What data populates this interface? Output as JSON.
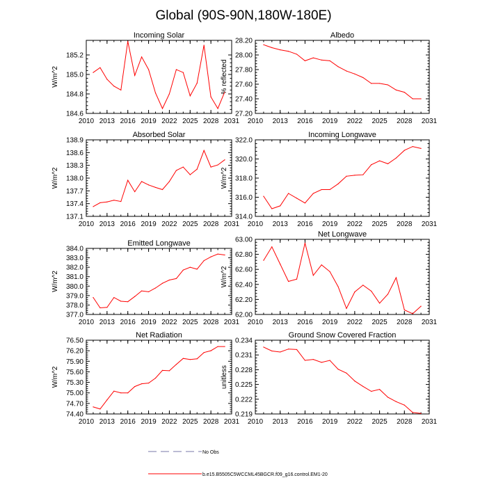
{
  "title": "Global (90S-90N,180W-180E)",
  "legend": {
    "entries": [
      {
        "label": "No Obs",
        "style": "dashed",
        "color": "#7777aa"
      },
      {
        "label": "b.e15.B5505C5WCCML45BGCR.f09_g16.control.EM1-20",
        "style": "solid",
        "color": "#ff0000"
      }
    ]
  },
  "colors": {
    "series": "#ff0000",
    "axis": "#000000"
  },
  "chart_data": [
    {
      "type": "line",
      "title": "Incoming Solar",
      "ylabel": "W/m^2",
      "xlim": [
        2010,
        2031
      ],
      "xticks": [
        2010,
        2013,
        2016,
        2019,
        2022,
        2025,
        2028,
        2031
      ],
      "ylim": [
        184.6,
        185.35
      ],
      "yticks": [
        "184.6",
        "184.8",
        "185.0",
        "185.2"
      ],
      "x": [
        2011,
        2012,
        2013,
        2014,
        2015,
        2016,
        2017,
        2018,
        2019,
        2020,
        2021,
        2022,
        2023,
        2024,
        2025,
        2026,
        2027,
        2028,
        2029,
        2030
      ],
      "y": [
        185.02,
        185.07,
        184.95,
        184.88,
        184.84,
        185.34,
        184.99,
        185.18,
        185.05,
        184.81,
        184.65,
        184.8,
        185.05,
        185.02,
        184.78,
        184.91,
        185.3,
        184.77,
        184.65,
        184.82
      ]
    },
    {
      "type": "line",
      "title": "Albedo",
      "ylabel": "% reflected",
      "xlim": [
        2010,
        2031
      ],
      "xticks": [
        2010,
        2013,
        2016,
        2019,
        2022,
        2025,
        2028,
        2031
      ],
      "ylim": [
        27.2,
        28.2
      ],
      "yticks": [
        "27.20",
        "27.40",
        "27.60",
        "27.80",
        "28.00",
        "28.20"
      ],
      "x": [
        2011,
        2012,
        2013,
        2014,
        2015,
        2016,
        2017,
        2018,
        2019,
        2020,
        2021,
        2022,
        2023,
        2024,
        2025,
        2026,
        2027,
        2028,
        2029,
        2030
      ],
      "y": [
        28.14,
        28.1,
        28.07,
        28.05,
        28.01,
        27.92,
        27.96,
        27.93,
        27.92,
        27.84,
        27.78,
        27.74,
        27.69,
        27.61,
        27.61,
        27.59,
        27.52,
        27.49,
        27.4,
        27.4
      ]
    },
    {
      "type": "line",
      "title": "Absorbed Solar",
      "ylabel": "W/m^2",
      "xlim": [
        2010,
        2031
      ],
      "xticks": [
        2010,
        2013,
        2016,
        2019,
        2022,
        2025,
        2028,
        2031
      ],
      "ylim": [
        137.1,
        138.9
      ],
      "yticks": [
        "137.1",
        "137.4",
        "137.7",
        "138.0",
        "138.3",
        "138.6",
        "138.9"
      ],
      "x": [
        2011,
        2012,
        2013,
        2014,
        2015,
        2016,
        2017,
        2018,
        2019,
        2020,
        2021,
        2022,
        2023,
        2024,
        2025,
        2026,
        2027,
        2028,
        2029,
        2030
      ],
      "y": [
        137.33,
        137.42,
        137.44,
        137.48,
        137.45,
        137.95,
        137.68,
        137.92,
        137.84,
        137.78,
        137.73,
        137.92,
        138.18,
        138.26,
        138.08,
        138.21,
        138.65,
        138.26,
        138.31,
        138.43
      ]
    },
    {
      "type": "line",
      "title": "Incoming Longwave",
      "ylabel": "W/m^2",
      "xlim": [
        2010,
        2031
      ],
      "xticks": [
        2010,
        2013,
        2016,
        2019,
        2022,
        2025,
        2028,
        2031
      ],
      "ylim": [
        314.0,
        322.0
      ],
      "yticks": [
        "314.0",
        "316.0",
        "318.0",
        "320.0",
        "322.0"
      ],
      "x": [
        2011,
        2012,
        2013,
        2014,
        2015,
        2016,
        2017,
        2018,
        2019,
        2020,
        2021,
        2022,
        2023,
        2024,
        2025,
        2026,
        2027,
        2028,
        2029,
        2030
      ],
      "y": [
        316.1,
        314.8,
        315.1,
        316.4,
        315.9,
        315.4,
        316.4,
        316.8,
        316.8,
        317.4,
        318.2,
        318.3,
        318.35,
        319.4,
        319.8,
        319.5,
        320.1,
        320.9,
        321.3,
        321.1
      ]
    },
    {
      "type": "line",
      "title": "Emitted Longwave",
      "ylabel": "W/m^2",
      "xlim": [
        2010,
        2031
      ],
      "xticks": [
        2010,
        2013,
        2016,
        2019,
        2022,
        2025,
        2028,
        2031
      ],
      "ylim": [
        377.0,
        384.0
      ],
      "yticks": [
        "377.0",
        "378.0",
        "379.0",
        "380.0",
        "381.0",
        "382.0",
        "383.0",
        "384.0"
      ],
      "x": [
        2011,
        2012,
        2013,
        2014,
        2015,
        2016,
        2017,
        2018,
        2019,
        2020,
        2021,
        2022,
        2023,
        2024,
        2025,
        2026,
        2027,
        2028,
        2029,
        2030
      ],
      "y": [
        378.8,
        377.7,
        377.75,
        378.8,
        378.4,
        378.35,
        378.9,
        379.5,
        379.4,
        379.8,
        380.3,
        380.65,
        380.8,
        381.7,
        382.0,
        381.8,
        382.7,
        383.1,
        383.4,
        383.3
      ]
    },
    {
      "type": "line",
      "title": "Net Longwave",
      "ylabel": "W/m^2",
      "xlim": [
        2010,
        2031
      ],
      "xticks": [
        2010,
        2013,
        2016,
        2019,
        2022,
        2025,
        2028,
        2031
      ],
      "ylim": [
        62.0,
        63.0
      ],
      "yticks": [
        "62.00",
        "62.20",
        "62.40",
        "62.60",
        "62.80",
        "63.00"
      ],
      "x": [
        2011,
        2012,
        2013,
        2014,
        2015,
        2016,
        2017,
        2018,
        2019,
        2020,
        2021,
        2022,
        2023,
        2024,
        2025,
        2026,
        2027,
        2028,
        2029,
        2030
      ],
      "y": [
        62.72,
        62.9,
        62.67,
        62.44,
        62.47,
        62.95,
        62.52,
        62.66,
        62.57,
        62.37,
        62.08,
        62.3,
        62.39,
        62.31,
        62.15,
        62.27,
        62.49,
        62.06,
        62.01,
        62.11
      ]
    },
    {
      "type": "line",
      "title": "Net Radiation",
      "ylabel": "W/m^2",
      "xlim": [
        2010,
        2031
      ],
      "xticks": [
        2010,
        2013,
        2016,
        2019,
        2022,
        2025,
        2028,
        2031
      ],
      "ylim": [
        74.4,
        76.5
      ],
      "yticks": [
        "74.40",
        "74.70",
        "75.00",
        "75.30",
        "75.60",
        "75.90",
        "76.20",
        "76.50"
      ],
      "x": [
        2011,
        2012,
        2013,
        2014,
        2015,
        2016,
        2017,
        2018,
        2019,
        2020,
        2021,
        2022,
        2023,
        2024,
        2025,
        2026,
        2027,
        2028,
        2029,
        2030
      ],
      "y": [
        74.6,
        74.54,
        74.8,
        75.05,
        75.0,
        75.0,
        75.18,
        75.26,
        75.28,
        75.42,
        75.64,
        75.63,
        75.81,
        75.98,
        75.95,
        75.97,
        76.15,
        76.2,
        76.32,
        76.32
      ]
    },
    {
      "type": "line",
      "title": "Ground Snow Covered Fraction",
      "ylabel": "unitless",
      "xlim": [
        2010,
        2031
      ],
      "xticks": [
        2010,
        2013,
        2016,
        2019,
        2022,
        2025,
        2028,
        2031
      ],
      "ylim": [
        0.219,
        0.234
      ],
      "yticks": [
        "0.219",
        "0.222",
        "0.225",
        "0.228",
        "0.231",
        "0.234"
      ],
      "x": [
        2011,
        2012,
        2013,
        2014,
        2015,
        2016,
        2017,
        2018,
        2019,
        2020,
        2021,
        2022,
        2023,
        2024,
        2025,
        2026,
        2027,
        2028,
        2029,
        2030
      ],
      "y": [
        0.2326,
        0.2318,
        0.2316,
        0.2322,
        0.2321,
        0.2299,
        0.2301,
        0.2295,
        0.2299,
        0.2281,
        0.2273,
        0.2257,
        0.2246,
        0.2236,
        0.224,
        0.2224,
        0.2215,
        0.2208,
        0.2193,
        0.2191
      ]
    }
  ]
}
